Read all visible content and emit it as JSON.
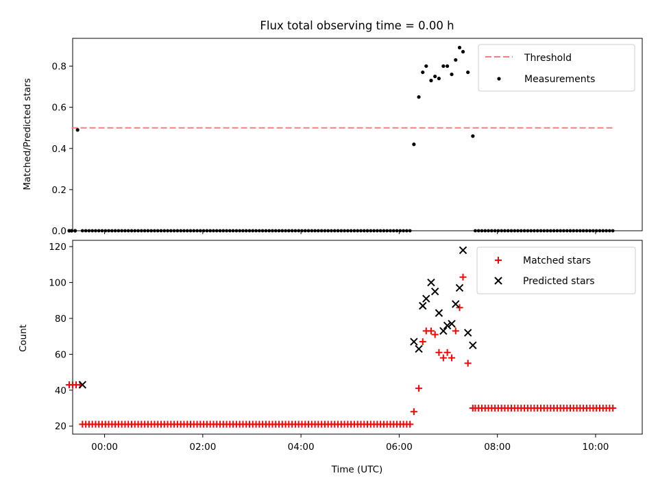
{
  "chart_data": [
    {
      "type": "scatter",
      "title": "Flux total observing time = 0.00 h",
      "ylabel": "Matched/Predicted stars",
      "xlim": [
        -0.65,
        10.95
      ],
      "ylim": [
        0,
        0.935
      ],
      "yticks": [
        0.0,
        0.2,
        0.4,
        0.6,
        0.8
      ],
      "ytick_labels": [
        "0.0",
        "0.2",
        "0.4",
        "0.6",
        "0.8"
      ],
      "show_xtick_labels": false,
      "legend": "top-right",
      "threshold": {
        "name": "Threshold",
        "value": 0.5,
        "x_range": [
          -0.67,
          10.4
        ],
        "color": "#f08080",
        "style": "dashed"
      },
      "series": [
        {
          "name": "Measurements",
          "color": "#000000",
          "marker": "dot",
          "x": [
            -0.72,
            -0.67,
            -0.6,
            -0.55,
            6.3,
            6.4,
            6.48,
            6.55,
            6.65,
            6.73,
            6.81,
            6.9,
            6.98,
            7.07,
            7.15,
            7.23,
            7.3,
            7.4,
            7.5
          ],
          "y": [
            0.0,
            0.0,
            0.0,
            0.49,
            0.42,
            0.65,
            0.77,
            0.8,
            0.73,
            0.75,
            0.74,
            0.8,
            0.8,
            0.76,
            0.83,
            0.89,
            0.87,
            0.77,
            0.46
          ]
        }
      ],
      "baseline": {
        "y": 0.0,
        "segments": [
          {
            "x_start": -0.45,
            "x_end": 6.25,
            "step": 0.0667
          },
          {
            "x_start": 7.55,
            "x_end": 10.4,
            "step": 0.0667
          }
        ]
      }
    },
    {
      "type": "scatter",
      "xlabel": "Time (UTC)",
      "ylabel": "Count",
      "xlim": [
        -0.65,
        10.95
      ],
      "ylim": [
        15.5,
        123.5
      ],
      "yticks": [
        20,
        40,
        60,
        80,
        100,
        120
      ],
      "ytick_labels": [
        "20",
        "40",
        "60",
        "80",
        "100",
        "120"
      ],
      "xticks": [
        0,
        2,
        4,
        6,
        8,
        10
      ],
      "xtick_labels": [
        "00:00",
        "02:00",
        "04:00",
        "06:00",
        "08:00",
        "10:00"
      ],
      "legend": "top-right",
      "series": [
        {
          "name": "Matched stars",
          "color": "#ff0000",
          "marker": "plus",
          "x": [
            -0.72,
            -0.65,
            -0.58,
            -0.5,
            6.3,
            6.4,
            6.48,
            6.55,
            6.65,
            6.73,
            6.81,
            6.9,
            6.98,
            7.07,
            7.15,
            7.23,
            7.3,
            7.4,
            7.5
          ],
          "y": [
            43,
            43,
            43,
            43,
            28,
            41,
            67,
            73,
            73,
            71,
            61,
            58,
            61,
            58,
            73,
            86,
            103,
            55,
            30
          ]
        },
        {
          "name": "Predicted stars",
          "color": "#000000",
          "marker": "x",
          "x": [
            -0.45,
            6.3,
            6.4,
            6.48,
            6.55,
            6.65,
            6.73,
            6.81,
            6.9,
            6.98,
            7.07,
            7.15,
            7.23,
            7.3,
            7.4,
            7.5
          ],
          "y": [
            43,
            67,
            63,
            87,
            91,
            100,
            95,
            83,
            73,
            76,
            77,
            88,
            97,
            118,
            72,
            65
          ]
        }
      ],
      "matched_plateaus": [
        {
          "y": 21,
          "x_start": -0.45,
          "x_end": 6.25,
          "step": 0.0667
        },
        {
          "y": 30,
          "x_start": 7.55,
          "x_end": 10.4,
          "step": 0.0667
        }
      ]
    }
  ]
}
